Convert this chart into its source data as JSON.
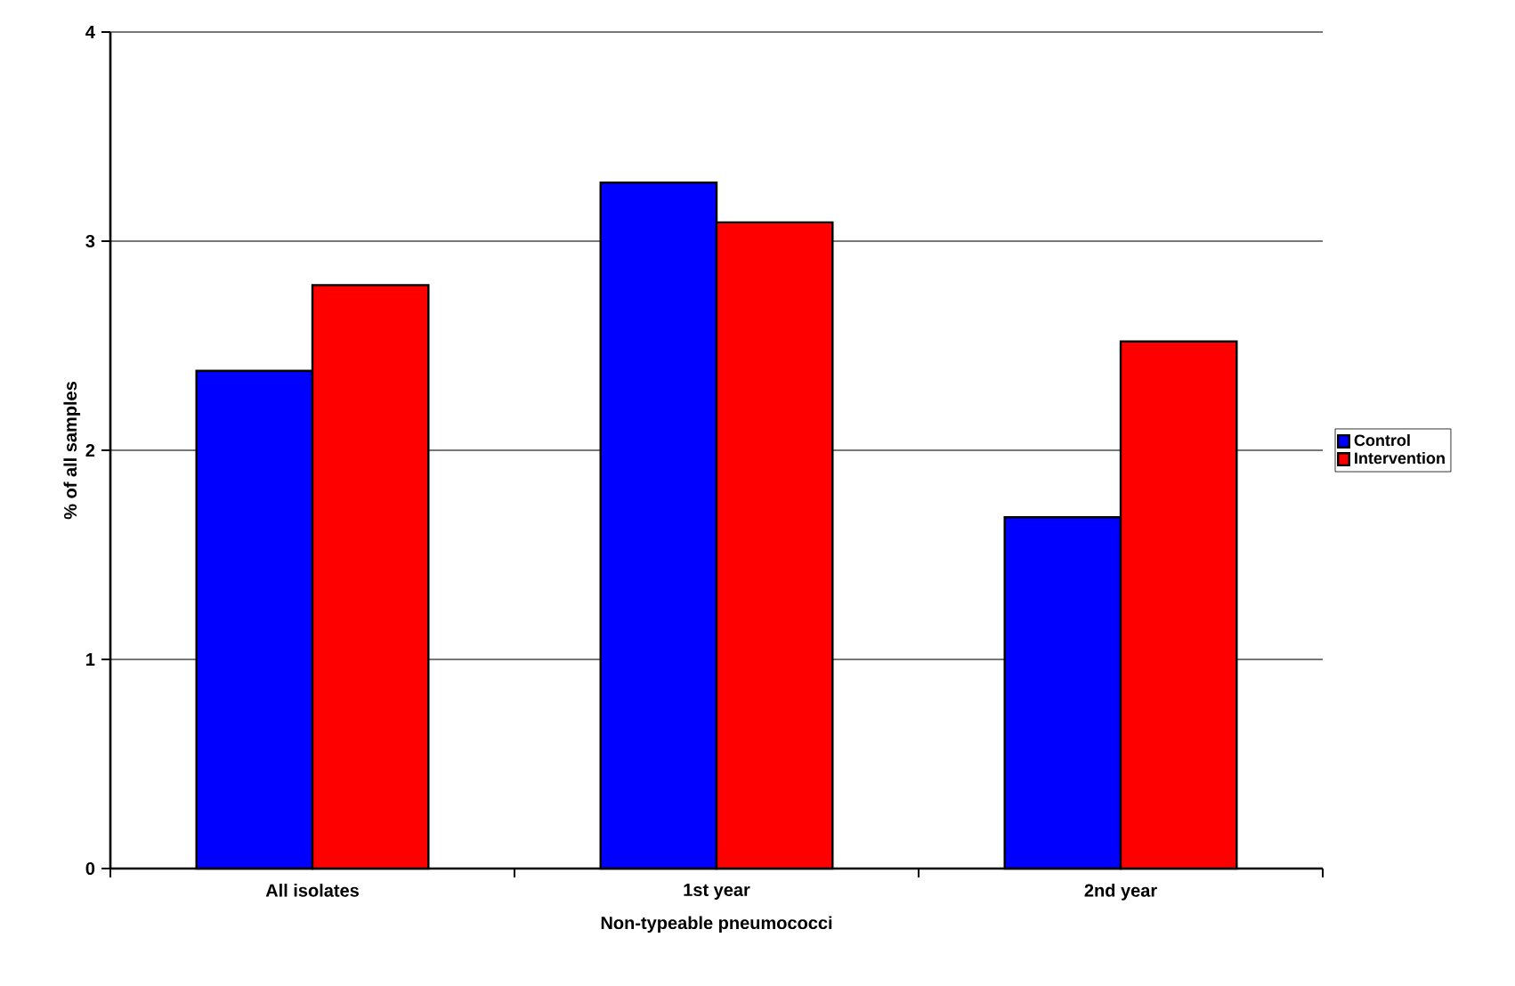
{
  "chart_data": {
    "type": "bar",
    "xlabel": "Non-typeable pneumococci",
    "ylabel": "% of all samples",
    "categories": [
      "All isolates",
      "1st year",
      "2nd year"
    ],
    "series": [
      {
        "name": "Control",
        "color": "#0000ff",
        "values": [
          2.38,
          3.28,
          1.68
        ]
      },
      {
        "name": "Intervention",
        "color": "#ff0000",
        "values": [
          2.79,
          3.09,
          2.52
        ]
      }
    ],
    "ylim": [
      0,
      4
    ],
    "yticks": [
      0,
      1,
      2,
      3,
      4
    ],
    "grid": "y",
    "legend": "right"
  }
}
